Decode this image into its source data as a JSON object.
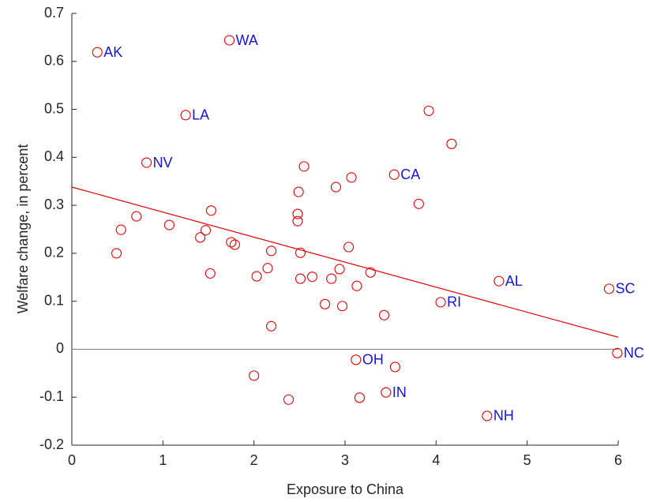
{
  "chart_data": {
    "type": "scatter",
    "xlabel": "Exposure to China",
    "ylabel": "Welfare change, in percent",
    "xlim": [
      0,
      6
    ],
    "ylim": [
      -0.2,
      0.7
    ],
    "xticks": [
      0,
      1,
      2,
      3,
      4,
      5,
      6
    ],
    "yticks": [
      -0.2,
      -0.1,
      0,
      0.1,
      0.2,
      0.3,
      0.4,
      0.5,
      0.6,
      0.7
    ],
    "marker_color": "#e00000",
    "label_color": "#1515d8",
    "line_color": "#e00000",
    "zero_line_color": "#808080",
    "zero_line": 0,
    "fit_line": {
      "x": [
        0,
        6
      ],
      "y": [
        0.338,
        0.025
      ]
    },
    "series": [
      {
        "x": [
          0.28,
          1.73,
          1.25,
          0.82,
          3.54,
          4.69,
          5.9,
          4.05,
          5.99,
          3.12,
          3.45,
          4.56,
          3.92,
          4.17,
          2.55,
          3.07,
          2.9,
          2.49,
          2.48,
          2.48,
          3.81,
          1.53,
          0.71,
          0.54,
          1.07,
          1.47,
          1.41,
          1.75,
          1.79,
          0.49,
          2.19,
          2.51,
          3.04,
          2.15,
          1.52,
          2.03,
          2.51,
          2.64,
          2.85,
          2.94,
          3.28,
          3.13,
          2.78,
          2.97,
          3.43,
          2.19,
          2.0,
          2.38,
          3.16,
          3.55
        ],
        "values": [
          0.619,
          0.644,
          0.488,
          0.389,
          0.364,
          0.142,
          0.126,
          0.098,
          -0.008,
          -0.022,
          -0.09,
          -0.139,
          0.497,
          0.428,
          0.381,
          0.358,
          0.338,
          0.328,
          0.282,
          0.267,
          0.303,
          0.289,
          0.277,
          0.249,
          0.259,
          0.248,
          0.233,
          0.223,
          0.218,
          0.2,
          0.205,
          0.201,
          0.213,
          0.169,
          0.158,
          0.152,
          0.147,
          0.151,
          0.147,
          0.167,
          0.16,
          0.132,
          0.094,
          0.09,
          0.071,
          0.048,
          -0.055,
          -0.105,
          -0.101,
          -0.037
        ],
        "labels": [
          "AK",
          "WA",
          "LA",
          "NV",
          "CA",
          "AL",
          "SC",
          "RI",
          "NC",
          "OH",
          "IN",
          "NH",
          null,
          null,
          null,
          null,
          null,
          null,
          null,
          null,
          null,
          null,
          null,
          null,
          null,
          null,
          null,
          null,
          null,
          null,
          null,
          null,
          null,
          null,
          null,
          null,
          null,
          null,
          null,
          null,
          null,
          null,
          null,
          null,
          null,
          null,
          null,
          null,
          null,
          null
        ]
      }
    ]
  }
}
